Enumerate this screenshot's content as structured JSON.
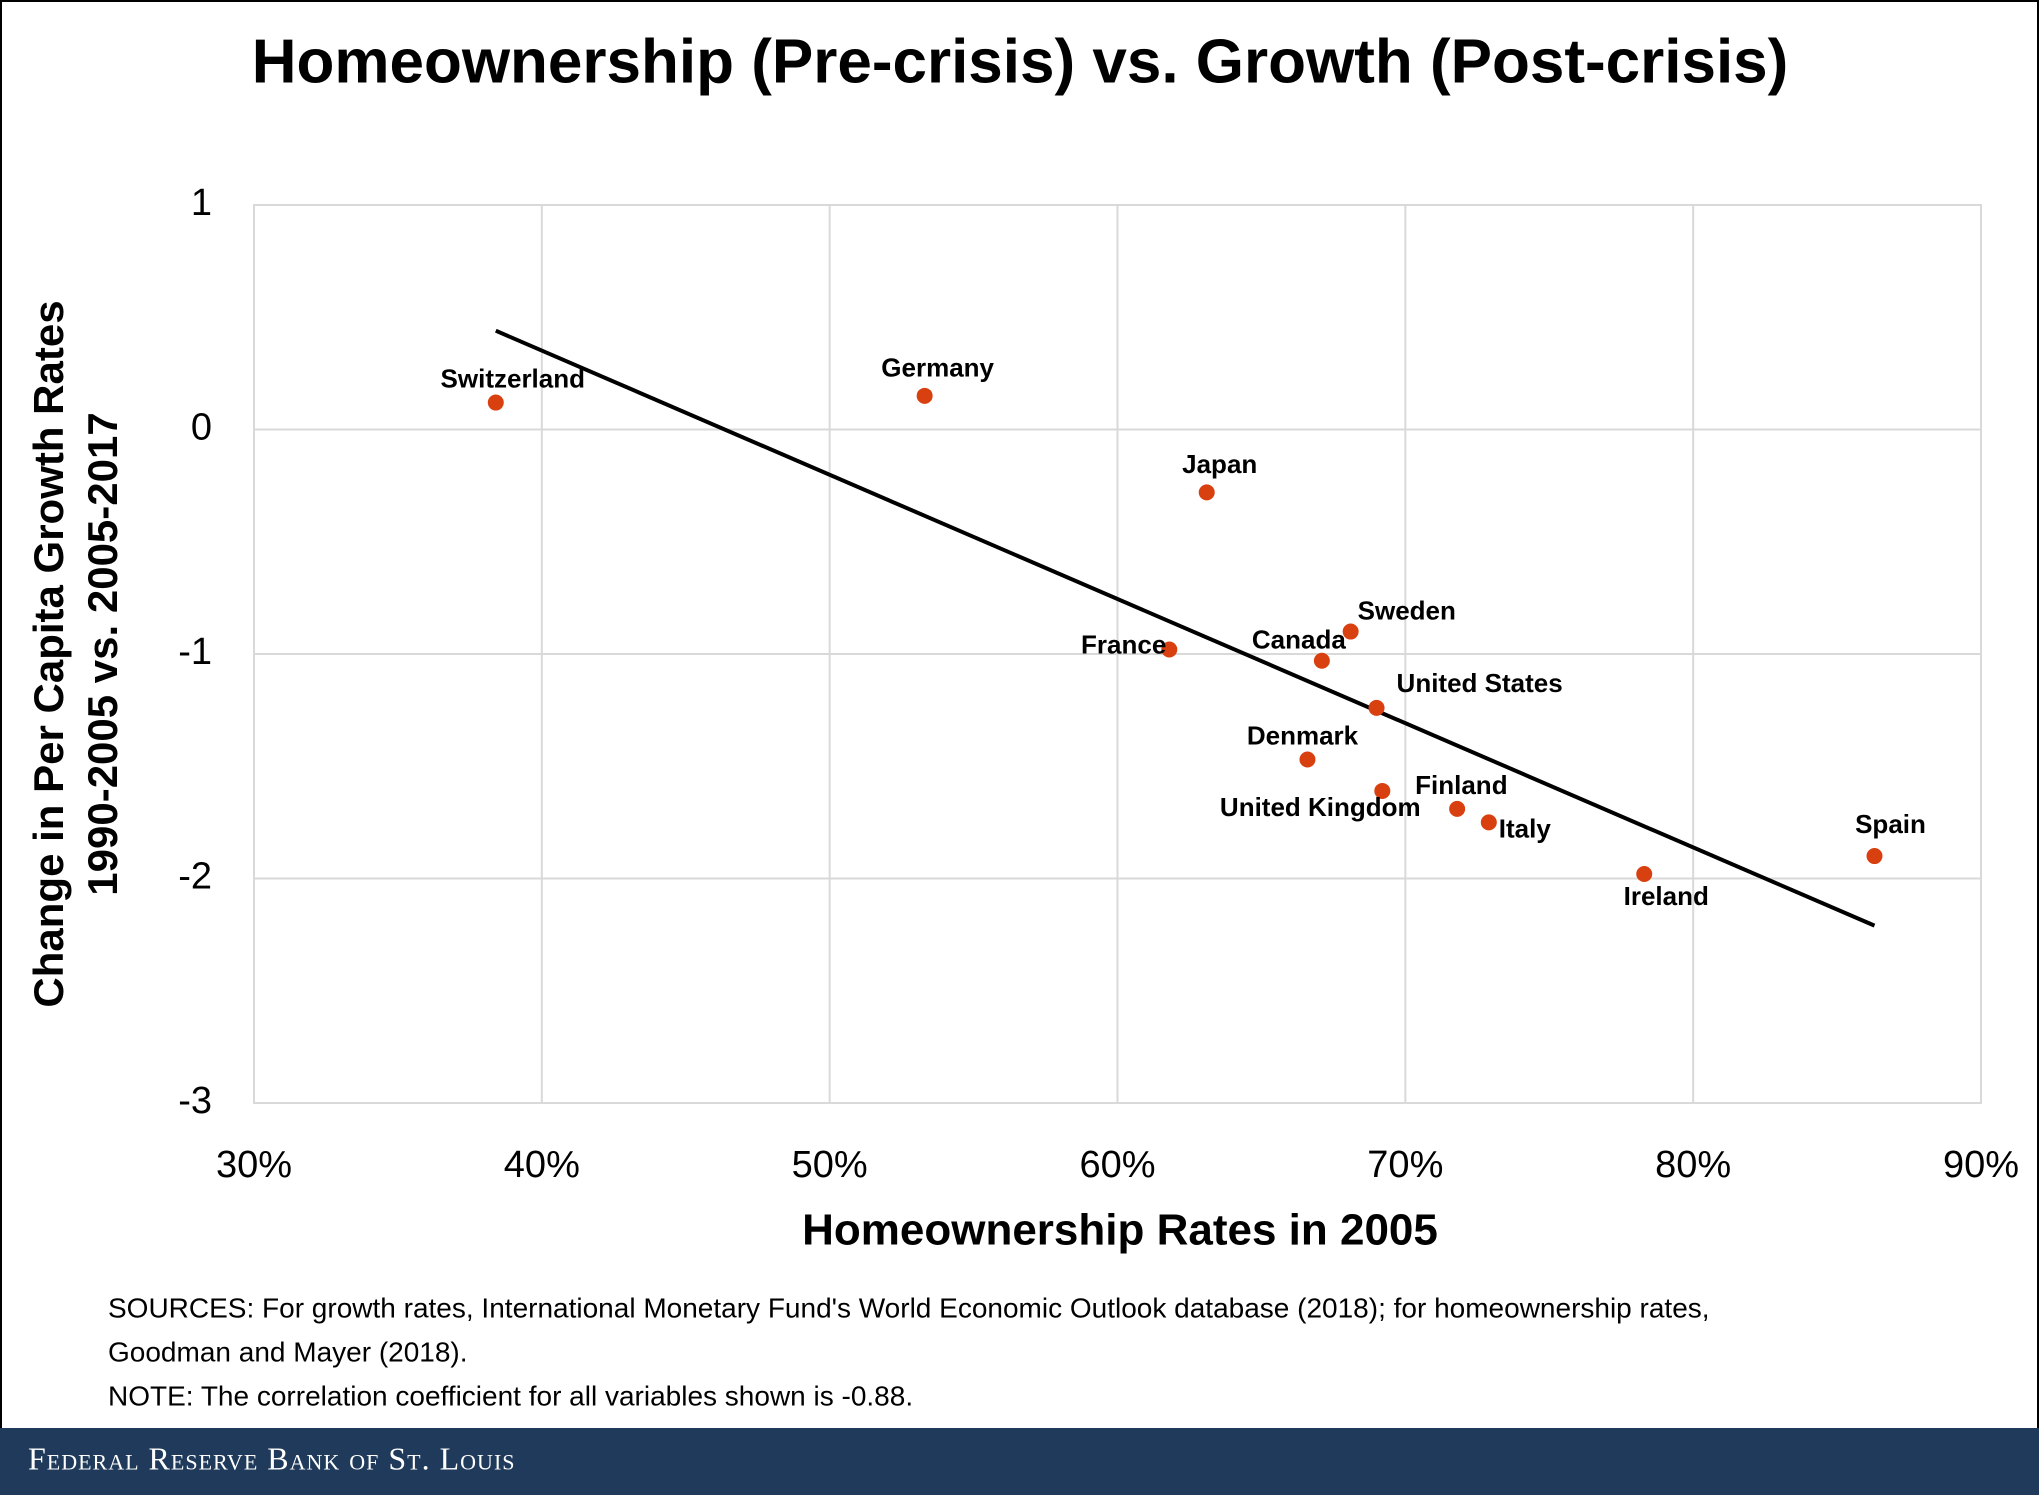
{
  "chart_data": {
    "type": "scatter",
    "title": "Homeownership (Pre-crisis) vs. Growth (Post-crisis)",
    "x_label": "Homeownership Rates in 2005",
    "y_label": [
      "Change in Per Capita Growth Rates",
      "1990-2005 vs. 2005-2017"
    ],
    "xlim": [
      30,
      90
    ],
    "xticks": [
      {
        "value": 30,
        "label": "30%"
      },
      {
        "value": 40,
        "label": "40%"
      },
      {
        "value": 50,
        "label": "50%"
      },
      {
        "value": 60,
        "label": "60%"
      },
      {
        "value": 70,
        "label": "70%"
      },
      {
        "value": 80,
        "label": "80%"
      },
      {
        "value": 90,
        "label": "90%"
      }
    ],
    "ylim": [
      -3,
      1
    ],
    "yticks": [
      -3,
      -2,
      -1,
      0,
      1
    ],
    "grid": true,
    "color": "#d9400f",
    "labels": [
      "Switzerland",
      "Germany",
      "Japan",
      "France",
      "Canada",
      "Sweden",
      "United States",
      "Denmark",
      "United Kingdom",
      "Finland",
      "Italy",
      "Ireland",
      "Spain"
    ],
    "x": [
      38.4,
      53.3,
      63.1,
      61.8,
      67.1,
      68.1,
      69.0,
      66.6,
      69.2,
      71.8,
      72.9,
      78.3,
      86.3
    ],
    "y": [
      0.12,
      0.15,
      -0.28,
      -0.98,
      -1.03,
      -0.9,
      -1.24,
      -1.47,
      -1.61,
      -1.69,
      -1.75,
      -1.98,
      -1.9
    ],
    "trendline": {
      "x": [
        38.4,
        86.3
      ],
      "y": [
        0.44,
        -2.21
      ],
      "color": "#000000"
    }
  },
  "notes": [
    "SOURCES: For growth rates, International Monetary Fund's World Economic Outlook database (2018); for homeownership rates,",
    "Goodman and Mayer (2018).",
    "NOTE: The correlation coefficient for all variables shown is -0.88."
  ],
  "footer": "Federal Reserve Bank of St. Louis"
}
